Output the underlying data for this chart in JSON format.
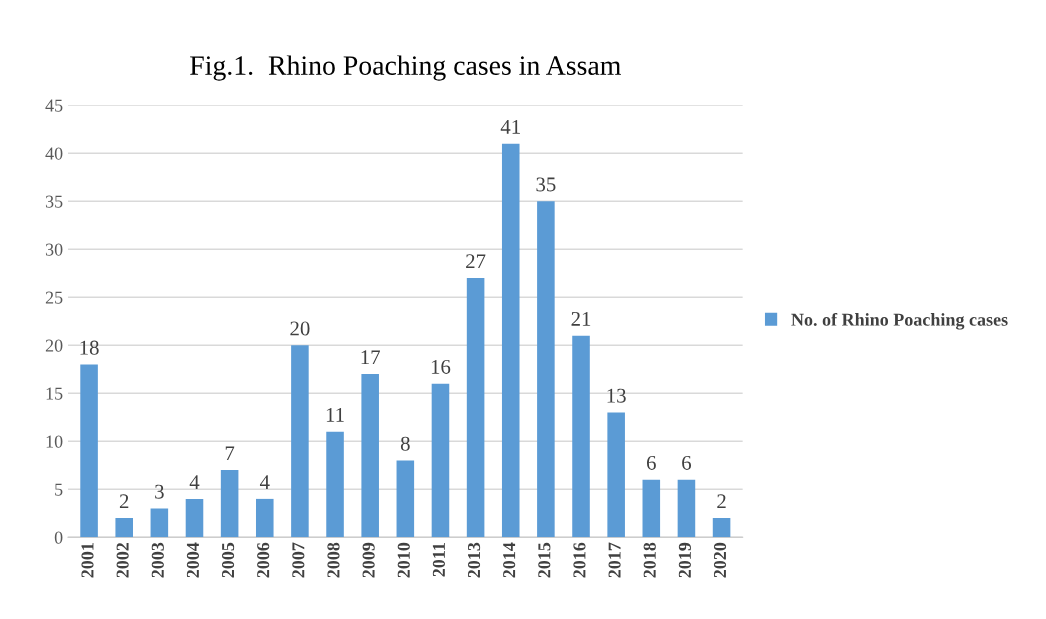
{
  "chart_data": {
    "type": "bar",
    "title": "Fig.1.  Rhino Poaching cases in Assam",
    "categories": [
      "2001",
      "2002",
      "2003",
      "2004",
      "2005",
      "2006",
      "2007",
      "2008",
      "2009",
      "2010",
      "2011",
      "2013",
      "2014",
      "2015",
      "2016",
      "2017",
      "2018",
      "2019",
      "2020"
    ],
    "series": [
      {
        "name": "No. of Rhino Poaching cases",
        "color": "#5b9bd5",
        "values": [
          18,
          2,
          3,
          4,
          7,
          4,
          20,
          11,
          17,
          8,
          16,
          27,
          41,
          35,
          21,
          13,
          6,
          6,
          2
        ]
      }
    ],
    "ylim": [
      0,
      45
    ],
    "yticks": [
      0,
      5,
      10,
      15,
      20,
      25,
      30,
      35,
      40,
      45
    ],
    "grid": "y",
    "legend": "right",
    "data_labels": true
  }
}
